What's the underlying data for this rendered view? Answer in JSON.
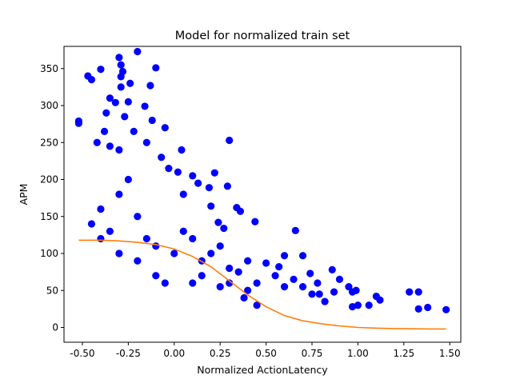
{
  "chart_data": {
    "type": "scatter",
    "title": "Model for normalized train set",
    "xlabel": "Normalized ActionLatency",
    "ylabel": "APM",
    "xlim": [
      -0.6,
      1.56
    ],
    "ylim": [
      -20,
      380
    ],
    "x_ticks": [
      "-0.50",
      "-0.25",
      "0.00",
      "0.25",
      "0.50",
      "0.75",
      "1.00",
      "1.25",
      "1.50"
    ],
    "y_ticks": [
      "0",
      "50",
      "100",
      "150",
      "200",
      "250",
      "300",
      "350"
    ],
    "grid": false,
    "legend": "none",
    "colors": {
      "scatter": "#0000ff",
      "model_line": "#ff7f0e"
    },
    "series": [
      {
        "kind": "scatter",
        "points": [
          [
            -0.52,
            276
          ],
          [
            -0.52,
            279
          ],
          [
            -0.47,
            340
          ],
          [
            -0.45,
            335
          ],
          [
            -0.4,
            349
          ],
          [
            -0.37,
            290
          ],
          [
            -0.35,
            310
          ],
          [
            -0.32,
            304
          ],
          [
            -0.3,
            365
          ],
          [
            -0.29,
            355
          ],
          [
            -0.29,
            339
          ],
          [
            -0.28,
            346
          ],
          [
            -0.29,
            325
          ],
          [
            -0.24,
            330
          ],
          [
            -0.2,
            373
          ],
          [
            -0.13,
            327
          ],
          [
            -0.1,
            351
          ],
          [
            -0.16,
            299
          ],
          [
            -0.25,
            305
          ],
          [
            -0.27,
            285
          ],
          [
            -0.38,
            265
          ],
          [
            -0.35,
            245
          ],
          [
            -0.42,
            250
          ],
          [
            -0.3,
            240
          ],
          [
            -0.22,
            265
          ],
          [
            -0.15,
            250
          ],
          [
            -0.12,
            280
          ],
          [
            -0.05,
            270
          ],
          [
            -0.07,
            230
          ],
          [
            0.04,
            240
          ],
          [
            0.02,
            210
          ],
          [
            -0.03,
            215
          ],
          [
            0.1,
            205
          ],
          [
            0.05,
            180
          ],
          [
            0.13,
            195
          ],
          [
            0.22,
            209
          ],
          [
            0.19,
            189
          ],
          [
            0.3,
            253
          ],
          [
            0.29,
            191
          ],
          [
            0.34,
            162
          ],
          [
            0.44,
            143
          ],
          [
            0.36,
            157
          ],
          [
            0.27,
            134
          ],
          [
            0.24,
            142
          ],
          [
            0.2,
            164
          ],
          [
            0.66,
            131
          ],
          [
            0.6,
            97
          ],
          [
            0.7,
            97
          ],
          [
            0.57,
            82
          ],
          [
            0.5,
            87
          ],
          [
            0.74,
            73
          ],
          [
            0.78,
            60
          ],
          [
            0.86,
            78
          ],
          [
            0.9,
            65
          ],
          [
            0.97,
            48
          ],
          [
            0.95,
            55
          ],
          [
            1.1,
            42
          ],
          [
            1.12,
            37
          ],
          [
            1.0,
            30
          ],
          [
            0.99,
            50
          ],
          [
            0.97,
            28
          ],
          [
            1.06,
            30
          ],
          [
            0.87,
            48
          ],
          [
            0.82,
            35
          ],
          [
            0.79,
            45
          ],
          [
            1.28,
            48
          ],
          [
            1.33,
            48
          ],
          [
            1.33,
            25
          ],
          [
            1.38,
            27
          ],
          [
            1.48,
            24
          ],
          [
            0.45,
            30
          ],
          [
            0.4,
            50
          ],
          [
            0.38,
            40
          ],
          [
            0.3,
            60
          ],
          [
            0.25,
            55
          ],
          [
            0.15,
            70
          ],
          [
            0.1,
            60
          ],
          [
            -0.05,
            60
          ],
          [
            -0.1,
            70
          ],
          [
            -0.2,
            90
          ],
          [
            -0.3,
            100
          ],
          [
            -0.4,
            120
          ],
          [
            -0.45,
            140
          ],
          [
            -0.4,
            160
          ],
          [
            -0.35,
            130
          ],
          [
            -0.3,
            180
          ],
          [
            -0.25,
            200
          ],
          [
            -0.2,
            150
          ],
          [
            -0.15,
            120
          ],
          [
            -0.1,
            110
          ],
          [
            0.0,
            100
          ],
          [
            0.05,
            130
          ],
          [
            0.1,
            120
          ],
          [
            0.15,
            90
          ],
          [
            0.2,
            100
          ],
          [
            0.25,
            110
          ],
          [
            0.3,
            80
          ],
          [
            0.35,
            75
          ],
          [
            0.4,
            90
          ],
          [
            0.45,
            60
          ],
          [
            0.55,
            70
          ],
          [
            0.6,
            55
          ],
          [
            0.65,
            65
          ],
          [
            0.7,
            55
          ],
          [
            0.75,
            45
          ]
        ]
      },
      {
        "kind": "line",
        "x": [
          -0.52,
          -0.4,
          -0.3,
          -0.2,
          -0.1,
          0.0,
          0.1,
          0.2,
          0.3,
          0.4,
          0.5,
          0.6,
          0.7,
          0.8,
          0.9,
          1.0,
          1.1,
          1.2,
          1.3,
          1.4,
          1.48
        ],
        "y": [
          118,
          118,
          117,
          115,
          112,
          106,
          96,
          82,
          63,
          44,
          28,
          16,
          9,
          5,
          2,
          0,
          -1,
          -1.5,
          -1.8,
          -2,
          -2
        ]
      }
    ]
  }
}
